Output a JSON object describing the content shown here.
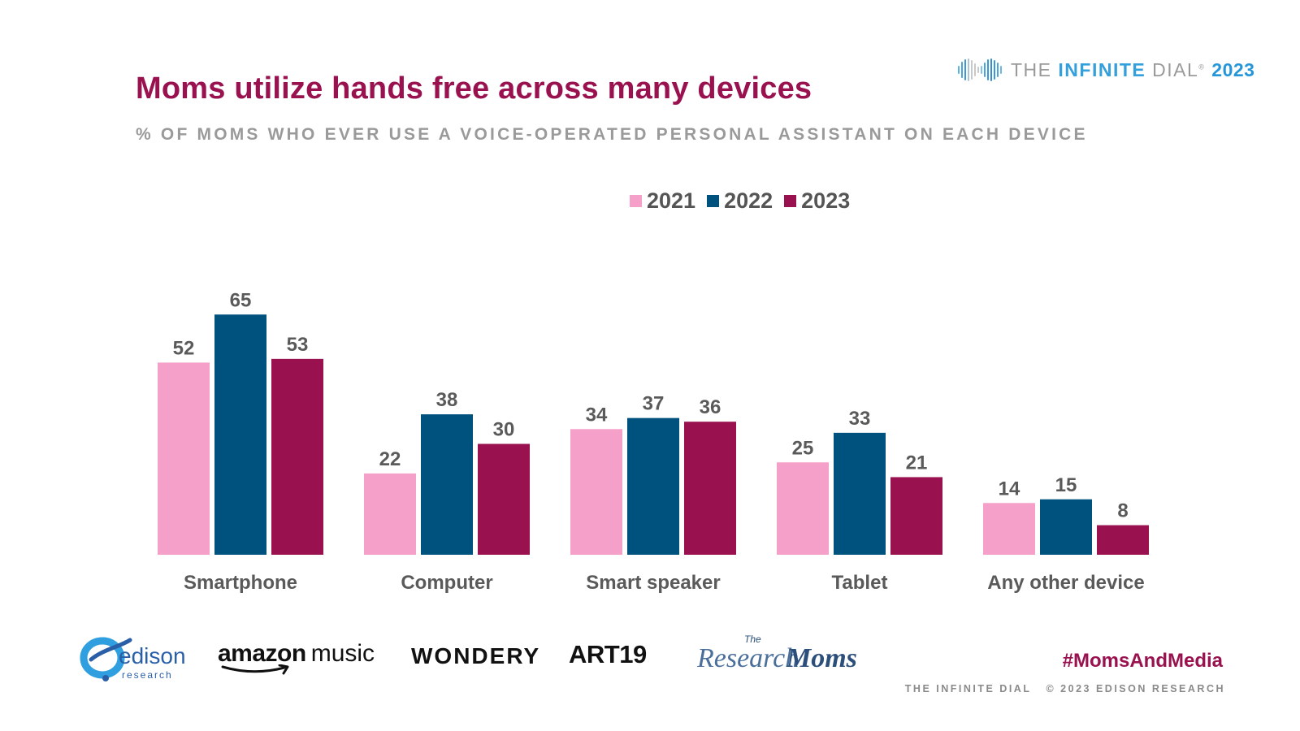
{
  "header": {
    "title": "Moms utilize hands free across many devices",
    "subtitle": "% OF MOMS WHO EVER USE A VOICE-OPERATED PERSONAL ASSISTANT ON EACH DEVICE"
  },
  "brand": {
    "the": "THE ",
    "infinite": "INFINITE",
    "dial": " DIAL",
    "reg": "®",
    "year": "2023",
    "icon": "infinity-wave-icon"
  },
  "colors": {
    "title": "#99124f",
    "series_2021": "#f5a0c8",
    "series_2022": "#00527e",
    "series_2023": "#99124f",
    "value_label": "#5a5a5a",
    "category_label": "#5a5a5a"
  },
  "chart_data": {
    "type": "bar",
    "title": "",
    "xlabel": "",
    "ylabel": "",
    "ylim": [
      0,
      70
    ],
    "grid": false,
    "legend_position": "top",
    "categories": [
      "Smartphone",
      "Computer",
      "Smart speaker",
      "Tablet",
      "Any other device"
    ],
    "series": [
      {
        "name": "2021",
        "color": "#f5a0c8",
        "values": [
          52,
          22,
          34,
          25,
          14
        ]
      },
      {
        "name": "2022",
        "color": "#00527e",
        "values": [
          65,
          38,
          37,
          33,
          15
        ]
      },
      {
        "name": "2023",
        "color": "#99124f",
        "values": [
          53,
          30,
          36,
          21,
          8
        ]
      }
    ]
  },
  "footer": {
    "hashtag": "#MomsAndMedia",
    "left": "THE INFINITE DIAL",
    "right": "© 2023 EDISON RESEARCH"
  },
  "logos": {
    "edison_word": "edison",
    "edison_sub": "research",
    "amazon_word": "amazon",
    "music_word": "music",
    "wondery": "WONDERY",
    "art19": "ART19",
    "rm_the": "The",
    "rm_research": "Research",
    "rm_moms": "Moms"
  }
}
